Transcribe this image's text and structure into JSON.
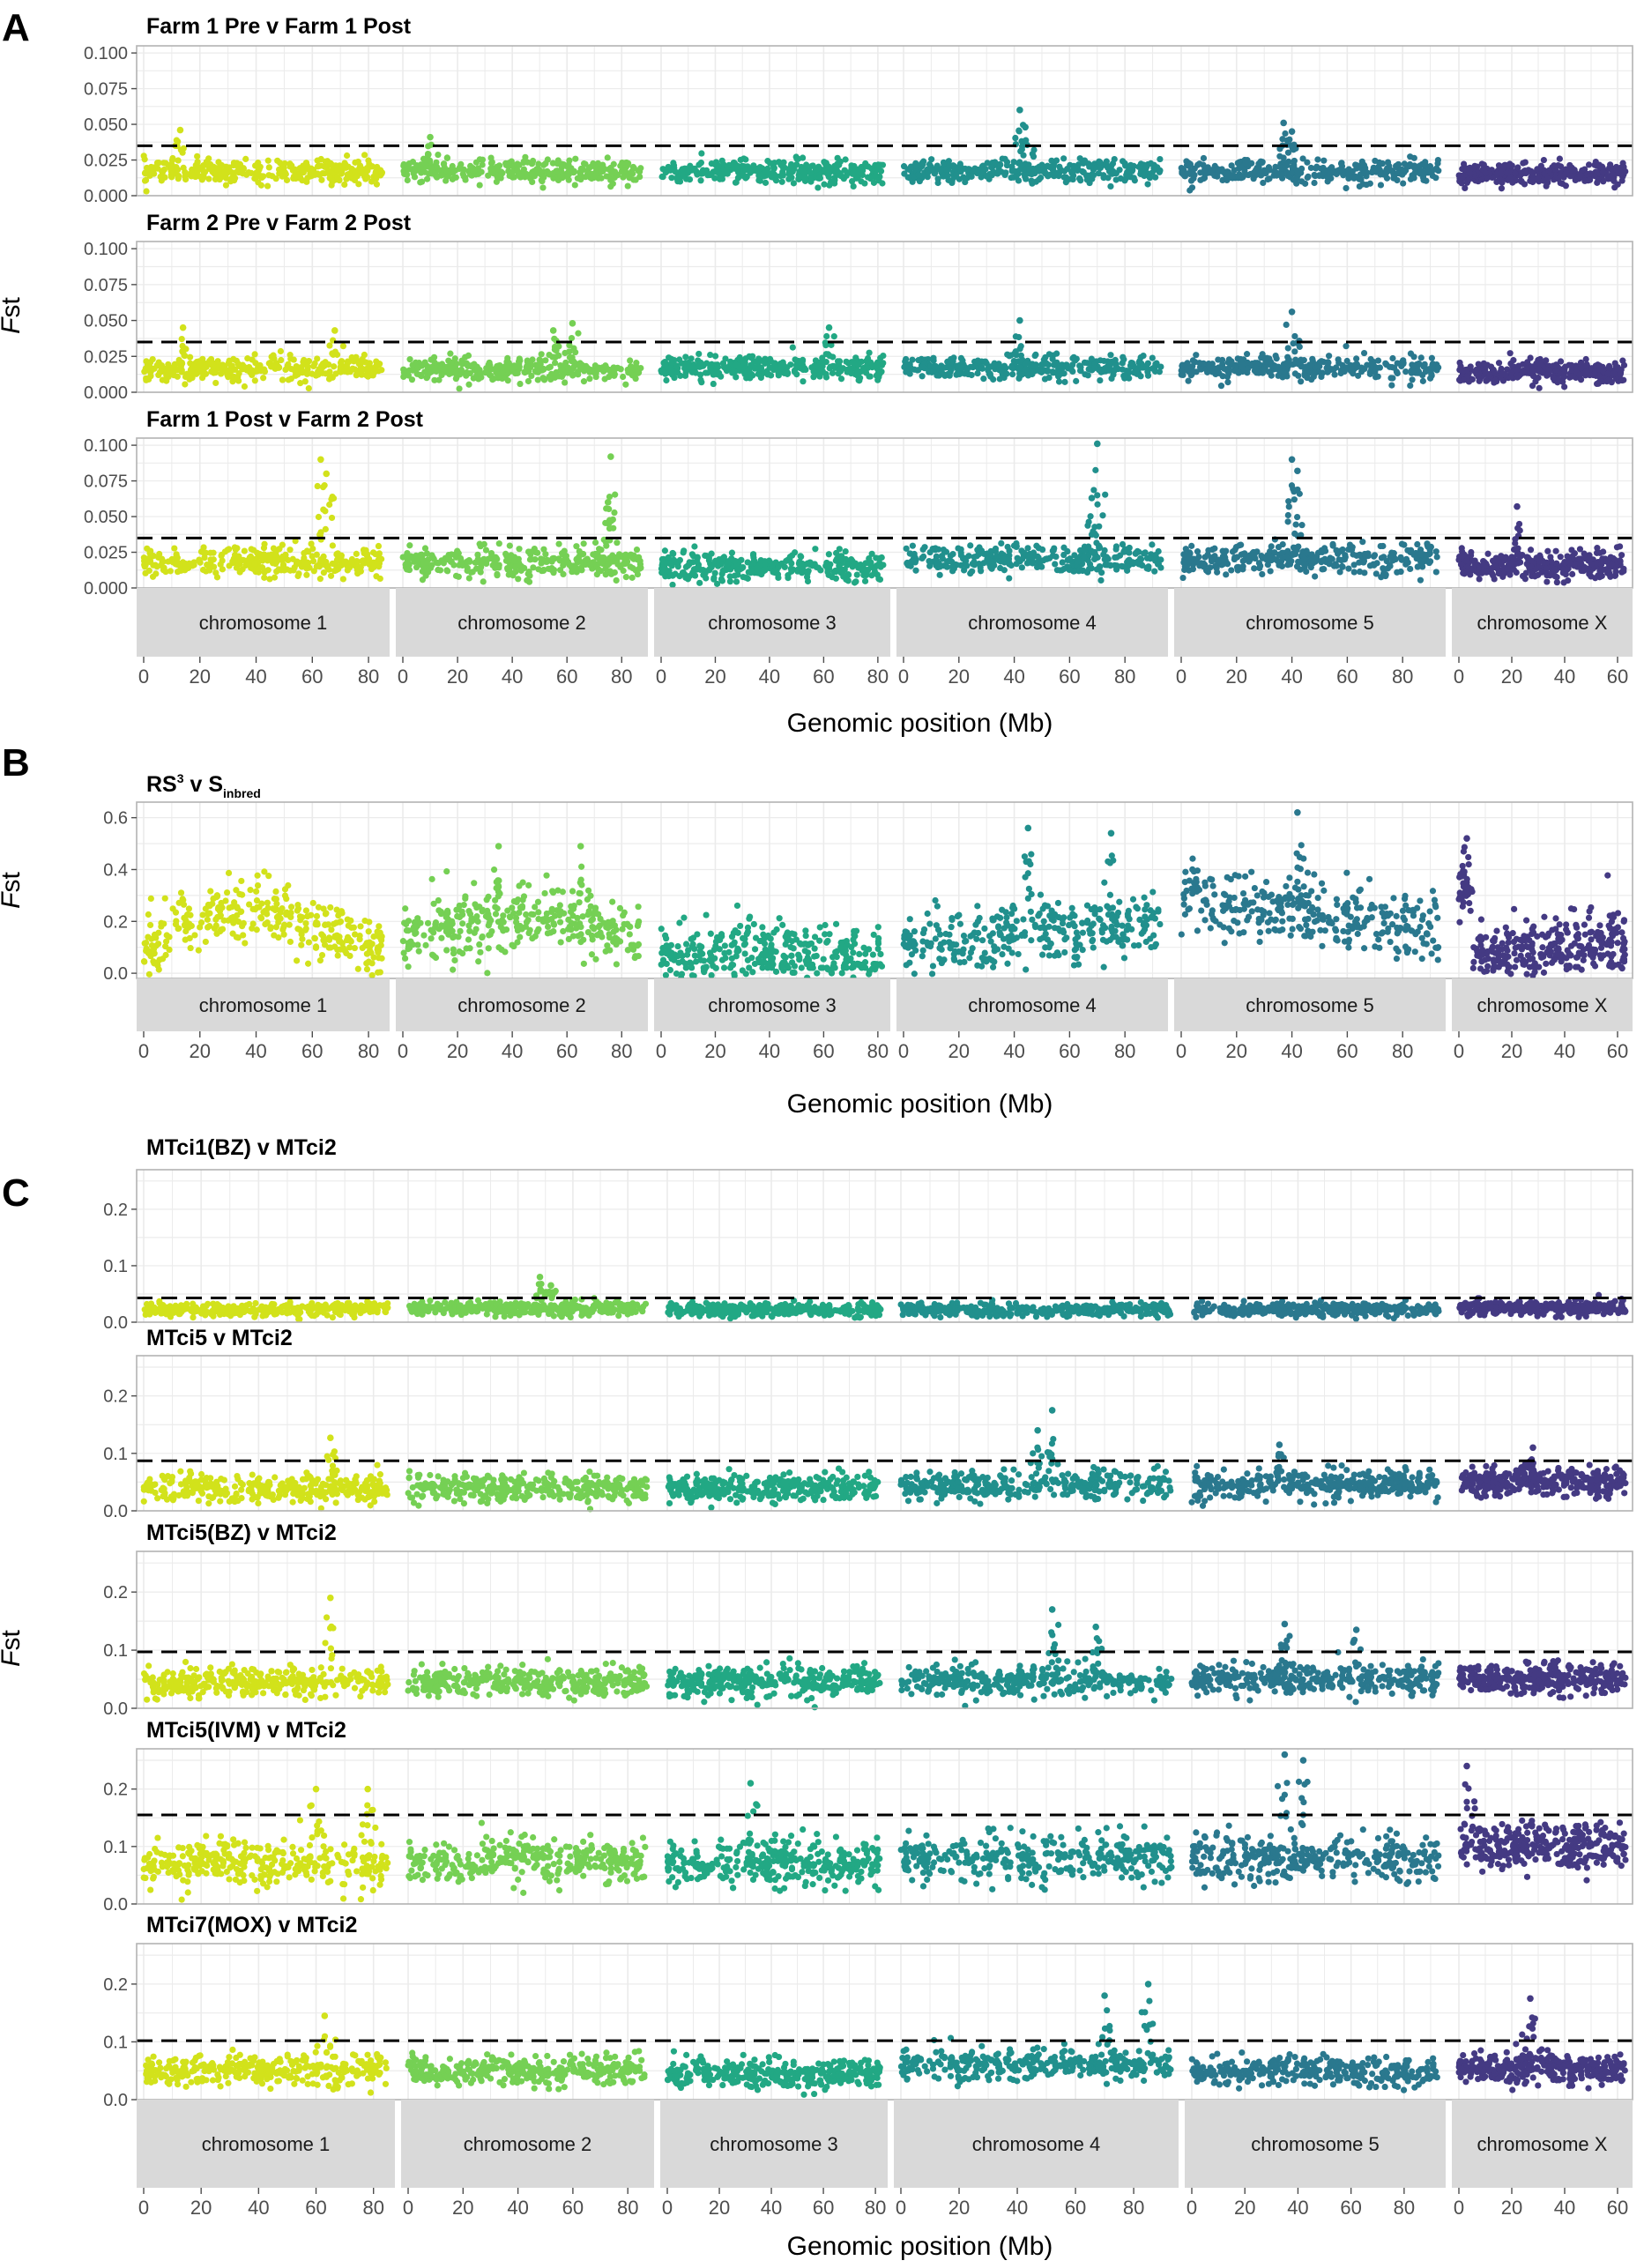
{
  "panel_letters": [
    "A",
    "B",
    "C"
  ],
  "axis_titles": {
    "x": "Genomic position (Mb)",
    "y_italic": "F",
    "y_rest": "st"
  },
  "colors": {
    "chromosome 1": "#d2e21b",
    "chromosome 2": "#75d054",
    "chromosome 3": "#22a884",
    "chromosome 4": "#21908d",
    "chromosome 5": "#2a788e",
    "chromosome X": "#443a83",
    "threshold_line": "#000000",
    "strip_fill": "#d9d9d9",
    "panel_border": "#b3b3b3",
    "grid": "#ebebeb"
  },
  "chart_data": {
    "type": "scatter",
    "xlabel": "Genomic position (Mb)",
    "ylabel": "Fst",
    "chromosomes": [
      {
        "name": "chromosome 1",
        "length_mb": 85,
        "ticks": [
          0,
          20,
          40,
          60,
          80
        ]
      },
      {
        "name": "chromosome 2",
        "length_mb": 87,
        "ticks": [
          0,
          20,
          40,
          60,
          80
        ]
      },
      {
        "name": "chromosome 3",
        "length_mb": 82,
        "ticks": [
          0,
          20,
          40,
          60,
          80
        ]
      },
      {
        "name": "chromosome 4",
        "length_mb": 93,
        "ticks": [
          0,
          20,
          40,
          60,
          80
        ]
      },
      {
        "name": "chromosome 5",
        "length_mb": 93,
        "ticks": [
          0,
          20,
          40,
          60,
          80
        ]
      },
      {
        "name": "chromosome X",
        "length_mb": 63,
        "ticks": [
          0,
          20,
          40,
          60
        ]
      }
    ],
    "panels": [
      {
        "group": "A",
        "title": "Farm 1 Pre v Farm 1 Post",
        "ylim": [
          0,
          0.105
        ],
        "yticks": [
          "0.000",
          "0.025",
          "0.050",
          "0.075",
          "0.100"
        ],
        "threshold": 0.035,
        "baseline": [
          0.017,
          0.017,
          0.017,
          0.017,
          0.017,
          0.015
        ],
        "noise": 0.004,
        "peaks": [
          {
            "chrom": 0,
            "pos": 13,
            "value": 0.046
          },
          {
            "chrom": 1,
            "pos": 10,
            "value": 0.041
          },
          {
            "chrom": 3,
            "pos": 42,
            "value": 0.06
          },
          {
            "chrom": 3,
            "pos": 44,
            "value": 0.048
          },
          {
            "chrom": 4,
            "pos": 37,
            "value": 0.051
          },
          {
            "chrom": 4,
            "pos": 40,
            "value": 0.045
          }
        ]
      },
      {
        "group": "A",
        "title": "Farm 2 Pre v Farm 2 Post",
        "ylim": [
          0,
          0.105
        ],
        "yticks": [
          "0.000",
          "0.025",
          "0.050",
          "0.075",
          "0.100"
        ],
        "threshold": 0.035,
        "baseline": [
          0.016,
          0.016,
          0.017,
          0.017,
          0.017,
          0.014
        ],
        "noise": 0.004,
        "peaks": [
          {
            "chrom": 0,
            "pos": 14,
            "value": 0.045
          },
          {
            "chrom": 0,
            "pos": 68,
            "value": 0.043
          },
          {
            "chrom": 1,
            "pos": 62,
            "value": 0.048
          },
          {
            "chrom": 1,
            "pos": 55,
            "value": 0.043
          },
          {
            "chrom": 2,
            "pos": 62,
            "value": 0.045
          },
          {
            "chrom": 3,
            "pos": 42,
            "value": 0.05
          },
          {
            "chrom": 4,
            "pos": 40,
            "value": 0.056
          }
        ]
      },
      {
        "group": "A",
        "title": "Farm 1 Post v Farm 2 Post",
        "ylim": [
          0,
          0.105
        ],
        "yticks": [
          "0.000",
          "0.025",
          "0.050",
          "0.075",
          "0.100"
        ],
        "threshold": 0.035,
        "baseline": [
          0.018,
          0.018,
          0.015,
          0.02,
          0.02,
          0.016
        ],
        "noise": 0.005,
        "peaks": [
          {
            "chrom": 0,
            "pos": 63,
            "value": 0.09
          },
          {
            "chrom": 0,
            "pos": 65,
            "value": 0.08
          },
          {
            "chrom": 1,
            "pos": 76,
            "value": 0.092
          },
          {
            "chrom": 1,
            "pos": 75,
            "value": 0.06
          },
          {
            "chrom": 3,
            "pos": 70,
            "value": 0.101
          },
          {
            "chrom": 3,
            "pos": 68,
            "value": 0.063
          },
          {
            "chrom": 4,
            "pos": 40,
            "value": 0.09
          },
          {
            "chrom": 4,
            "pos": 42,
            "value": 0.082
          },
          {
            "chrom": 5,
            "pos": 22,
            "value": 0.057
          }
        ]
      },
      {
        "group": "B",
        "title_main": "RS",
        "title_sup": "3",
        "title_mid": " v S",
        "title_sub": "inbred",
        "ylim": [
          -0.02,
          0.66
        ],
        "yticks": [
          "0.0",
          "0.2",
          "0.4",
          "0.6"
        ],
        "threshold": null,
        "baseline": [
          0.17,
          0.17,
          0.07,
          0.15,
          0.22,
          0.08
        ],
        "noise": 0.06,
        "peaks": [
          {
            "chrom": 3,
            "pos": 45,
            "value": 0.56
          },
          {
            "chrom": 3,
            "pos": 75,
            "value": 0.54
          },
          {
            "chrom": 4,
            "pos": 42,
            "value": 0.62
          },
          {
            "chrom": 1,
            "pos": 35,
            "value": 0.49
          },
          {
            "chrom": 1,
            "pos": 65,
            "value": 0.49
          },
          {
            "chrom": 5,
            "pos": 3,
            "value": 0.52
          }
        ]
      },
      {
        "group": "C",
        "title": "MTci1(BZ) v MTci2",
        "ylim": [
          0,
          0.27
        ],
        "yticks": [
          "0.0",
          "0.1",
          "0.2"
        ],
        "threshold": 0.043,
        "baseline": [
          0.022,
          0.025,
          0.022,
          0.022,
          0.022,
          0.025
        ],
        "noise": 0.006,
        "peaks": [
          {
            "chrom": 1,
            "pos": 48,
            "value": 0.08
          },
          {
            "chrom": 1,
            "pos": 52,
            "value": 0.065
          }
        ]
      },
      {
        "group": "C",
        "title": "MTci5 v MTci2",
        "ylim": [
          0,
          0.27
        ],
        "yticks": [
          "0.0",
          "0.1",
          "0.2"
        ],
        "threshold": 0.087,
        "baseline": [
          0.04,
          0.04,
          0.04,
          0.045,
          0.045,
          0.05
        ],
        "noise": 0.012,
        "peaks": [
          {
            "chrom": 0,
            "pos": 65,
            "value": 0.127
          },
          {
            "chrom": 3,
            "pos": 52,
            "value": 0.175
          },
          {
            "chrom": 3,
            "pos": 47,
            "value": 0.14
          },
          {
            "chrom": 4,
            "pos": 33,
            "value": 0.115
          },
          {
            "chrom": 5,
            "pos": 28,
            "value": 0.11
          }
        ]
      },
      {
        "group": "C",
        "title": "MTci5(BZ) v MTci2",
        "ylim": [
          0,
          0.27
        ],
        "yticks": [
          "0.0",
          "0.1",
          "0.2"
        ],
        "threshold": 0.097,
        "baseline": [
          0.045,
          0.045,
          0.045,
          0.048,
          0.05,
          0.05
        ],
        "noise": 0.013,
        "peaks": [
          {
            "chrom": 0,
            "pos": 65,
            "value": 0.19
          },
          {
            "chrom": 3,
            "pos": 52,
            "value": 0.17
          },
          {
            "chrom": 3,
            "pos": 67,
            "value": 0.14
          },
          {
            "chrom": 4,
            "pos": 35,
            "value": 0.145
          },
          {
            "chrom": 4,
            "pos": 62,
            "value": 0.135
          }
        ]
      },
      {
        "group": "C",
        "title": "MTci5(IVM) v MTci2",
        "ylim": [
          0,
          0.27
        ],
        "yticks": [
          "0.0",
          "0.1",
          "0.2"
        ],
        "threshold": 0.155,
        "baseline": [
          0.07,
          0.075,
          0.07,
          0.08,
          0.08,
          0.1
        ],
        "noise": 0.02,
        "peaks": [
          {
            "chrom": 0,
            "pos": 60,
            "value": 0.2
          },
          {
            "chrom": 0,
            "pos": 78,
            "value": 0.2
          },
          {
            "chrom": 2,
            "pos": 32,
            "value": 0.21
          },
          {
            "chrom": 4,
            "pos": 35,
            "value": 0.26
          },
          {
            "chrom": 4,
            "pos": 42,
            "value": 0.25
          },
          {
            "chrom": 5,
            "pos": 3,
            "value": 0.24
          }
        ]
      },
      {
        "group": "C",
        "title": "MTci7(MOX) v MTci2",
        "ylim": [
          0,
          0.27
        ],
        "yticks": [
          "0.0",
          "0.1",
          "0.2"
        ],
        "threshold": 0.102,
        "baseline": [
          0.05,
          0.05,
          0.045,
          0.06,
          0.048,
          0.055
        ],
        "noise": 0.013,
        "peaks": [
          {
            "chrom": 0,
            "pos": 63,
            "value": 0.145
          },
          {
            "chrom": 3,
            "pos": 85,
            "value": 0.2
          },
          {
            "chrom": 3,
            "pos": 70,
            "value": 0.18
          },
          {
            "chrom": 5,
            "pos": 27,
            "value": 0.175
          }
        ]
      }
    ]
  }
}
